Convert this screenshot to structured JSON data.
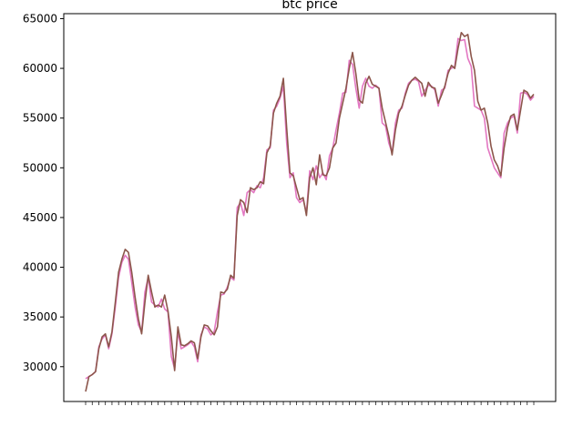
{
  "chart_data": {
    "type": "line",
    "title": "btc price",
    "xlabel": "",
    "ylabel": "",
    "ylim": [
      26500,
      65500
    ],
    "y_ticks": [
      30000,
      35000,
      40000,
      45000,
      50000,
      55000,
      60000,
      65000
    ],
    "grid": false,
    "x_tick_labels_note": "dense overlapping date tick labels (unreadable)",
    "series": [
      {
        "color": "#e377c2",
        "values": [
          28800,
          29000,
          29200,
          29500,
          32000,
          32800,
          33200,
          31800,
          33300,
          36000,
          39000,
          40500,
          41200,
          40800,
          38500,
          36000,
          34200,
          33500,
          37500,
          39000,
          36500,
          36200,
          36000,
          36800,
          35800,
          35500,
          31000,
          29800,
          33500,
          31800,
          32000,
          32200,
          32500,
          32000,
          30500,
          33200,
          34000,
          33800,
          33200,
          33500,
          35500,
          37200,
          37300,
          38000,
          39000,
          38700,
          46000,
          46500,
          45200,
          47500,
          47800,
          47500,
          48200,
          48000,
          49000,
          51800,
          52000,
          55800,
          56200,
          57000,
          58200,
          52500,
          49000,
          49500,
          47000,
          46500,
          46800,
          45500,
          49700,
          48800,
          50200,
          49000,
          49500,
          48800,
          51200,
          52000,
          53800,
          55500,
          57500,
          57600,
          60800,
          60400,
          58000,
          56000,
          58200,
          59000,
          58200,
          58000,
          58300,
          58000,
          54500,
          54200,
          52500,
          51500,
          54500,
          55800,
          56000,
          57500,
          58500,
          58800,
          58900,
          58700,
          57200,
          57800,
          58300,
          58200,
          57800,
          56200,
          57800,
          58000,
          59800,
          60000,
          60200,
          63000,
          62800,
          62900,
          61000,
          60200,
          56200,
          56000,
          55800,
          55000,
          52000,
          51000,
          50000,
          49500,
          49000,
          53500,
          54500,
          55000,
          55200,
          53500,
          57500,
          57600,
          57400,
          56800,
          57200
        ]
      },
      {
        "color": "#8c564b",
        "values": [
          27500,
          29000,
          29200,
          29500,
          31800,
          33000,
          33300,
          32000,
          33500,
          36500,
          39500,
          40800,
          41800,
          41500,
          39500,
          37000,
          34800,
          33300,
          36500,
          39200,
          37500,
          36000,
          36200,
          36000,
          37200,
          35600,
          33000,
          29600,
          34000,
          32200,
          32100,
          32300,
          32600,
          32400,
          30800,
          33000,
          34200,
          34100,
          33600,
          33200,
          34000,
          37500,
          37400,
          37800,
          39200,
          38900,
          45200,
          46800,
          46500,
          45500,
          48000,
          47800,
          48000,
          48600,
          48400,
          51500,
          52200,
          55500,
          56500,
          57200,
          59000,
          54000,
          49500,
          49200,
          48000,
          46800,
          47000,
          45200,
          49000,
          50000,
          48300,
          51300,
          49300,
          49200,
          50000,
          52000,
          52500,
          55000,
          56500,
          58000,
          60000,
          61600,
          59500,
          56800,
          56500,
          58500,
          59200,
          58400,
          58200,
          58000,
          56000,
          54600,
          53200,
          51300,
          53800,
          55500,
          56200,
          57300,
          58300,
          58800,
          59100,
          58800,
          58500,
          57200,
          58600,
          58100,
          58000,
          56500,
          57300,
          58200,
          59500,
          60300,
          60000,
          62000,
          63600,
          63200,
          63400,
          61200,
          59800,
          56700,
          55800,
          56000,
          54500,
          52200,
          50800,
          50200,
          49200,
          52000,
          54000,
          55200,
          55400,
          53800,
          55800,
          57800,
          57600,
          57000,
          57400
        ]
      }
    ]
  }
}
